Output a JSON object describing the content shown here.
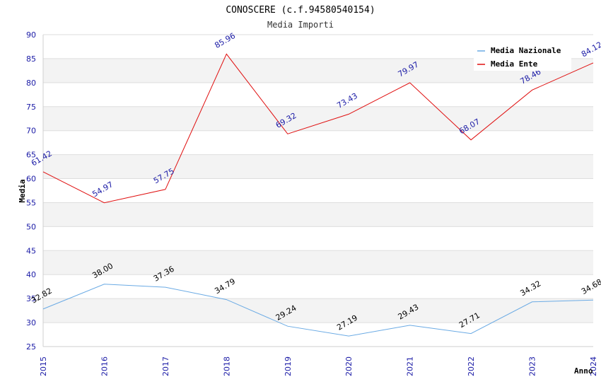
{
  "chart_data": {
    "type": "line",
    "title": "CONOSCERE (c.f.94580540154)",
    "subtitle": "Media Importi",
    "xlabel": "Anno",
    "ylabel": "Media",
    "ylim": [
      25,
      90
    ],
    "yticks": [
      25,
      30,
      35,
      40,
      45,
      50,
      55,
      60,
      65,
      70,
      75,
      80,
      85,
      90
    ],
    "categories": [
      "2015",
      "2016",
      "2017",
      "2018",
      "2019",
      "2020",
      "2021",
      "2022",
      "2023",
      "2024"
    ],
    "grid": "horizontal bands",
    "legend_position": "top-right",
    "series": [
      {
        "name": "Media Nazionale",
        "color": "#6aaae4",
        "label_color": "#000000",
        "values": [
          32.82,
          38.0,
          37.36,
          34.79,
          29.24,
          27.19,
          29.43,
          27.71,
          34.32,
          34.68
        ],
        "labels": [
          "32.82",
          "38.00",
          "37.36",
          "34.79",
          "29.24",
          "27.19",
          "29.43",
          "27.71",
          "34.32",
          "34.68"
        ]
      },
      {
        "name": "Media Ente",
        "color": "#e01010",
        "label_color": "#1a1aa6",
        "values": [
          61.42,
          54.97,
          57.75,
          85.96,
          69.32,
          73.43,
          79.97,
          68.07,
          78.46,
          84.12
        ],
        "labels": [
          "61.42",
          "54.97",
          "57.75",
          "85.96",
          "69.32",
          "73.43",
          "79.97",
          "68.07",
          "78.46",
          "84.12"
        ]
      }
    ]
  }
}
